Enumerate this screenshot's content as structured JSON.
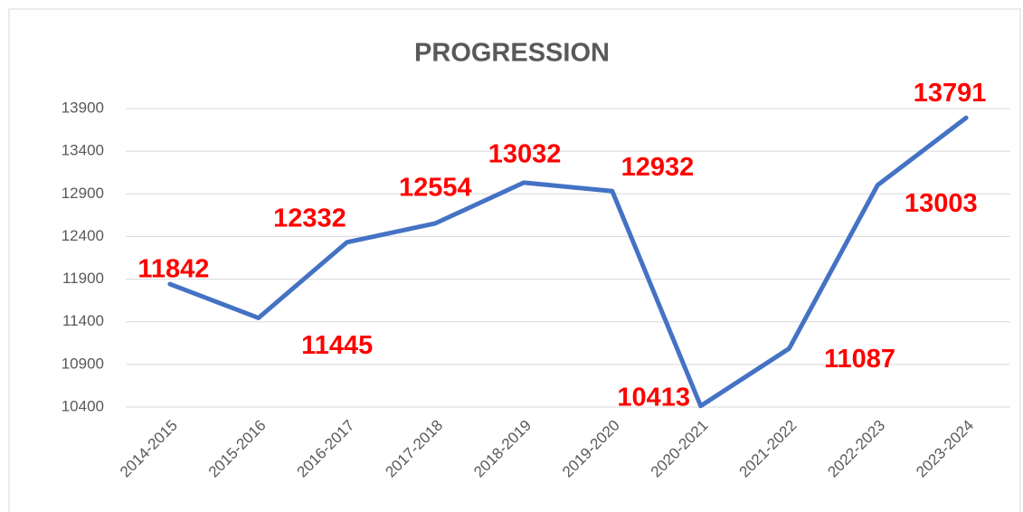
{
  "chart_data": {
    "type": "line",
    "title": "PROGRESSION",
    "categories": [
      "2014-2015",
      "2015-2016",
      "2016-2017",
      "2017-2018",
      "2018-2019",
      "2019-2020",
      "2020-2021",
      "2021-2022",
      "2022-2023",
      "2023-2024"
    ],
    "series": [
      {
        "name": "PROGRESSION",
        "color": "#4472c4",
        "values": [
          11842,
          11445,
          12332,
          12554,
          13032,
          12932,
          10413,
          11087,
          13003,
          13791
        ]
      }
    ],
    "ylim": [
      10400,
      13900
    ],
    "yticks": [
      10400,
      10900,
      11400,
      11900,
      12400,
      12900,
      13400,
      13900
    ],
    "grid": true,
    "label_color": "#ff0000"
  }
}
